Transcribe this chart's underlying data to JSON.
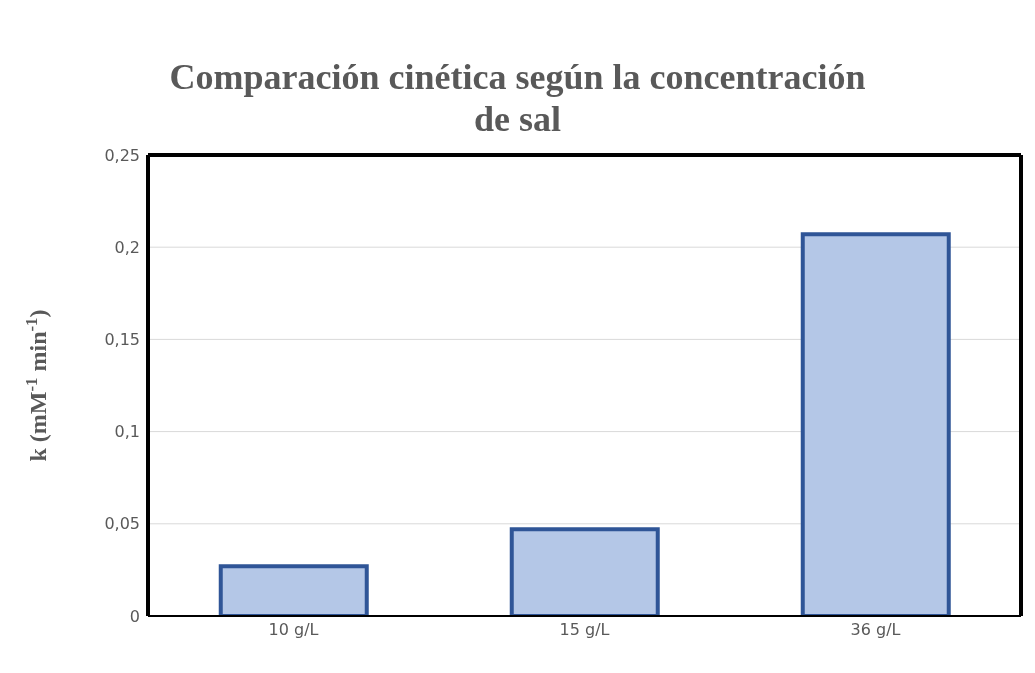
{
  "chart_data": {
    "type": "bar",
    "title": "Comparación cinética según la concentración de sal",
    "ylabel": "k (mM$^{-1}$ min$^{-1}$)",
    "categories": [
      "10 g/L",
      "15 g/L",
      "36 g/L"
    ],
    "values": [
      0.027,
      0.047,
      0.207
    ],
    "color": "#b4c7e7",
    "ylim": [
      0,
      0.25
    ],
    "yticks": [
      0,
      {
        "value": 0.05,
        "label": "0,05"
      },
      {
        "value": 0.1,
        "label": "0,1"
      },
      {
        "value": 0.15,
        "label": "0,15"
      },
      {
        "value": 0.2,
        "label": "0,2"
      },
      {
        "value": 0.25,
        "label": "0,25"
      }
    ],
    "grid": "y"
  }
}
